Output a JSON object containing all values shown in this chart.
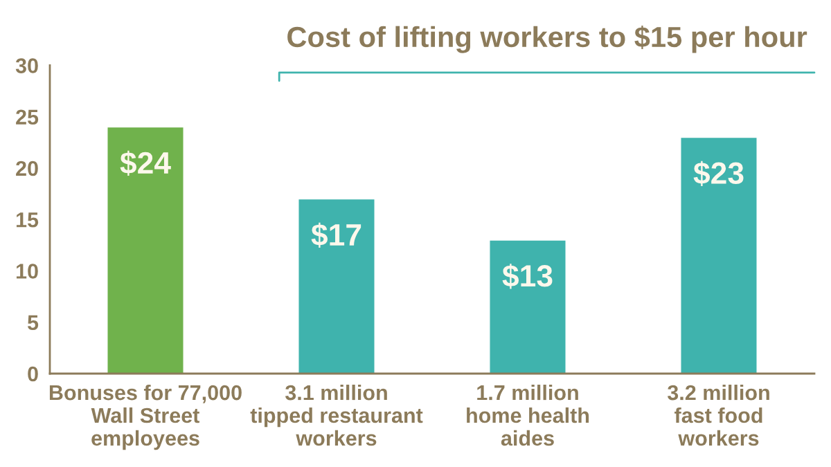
{
  "chart_data": {
    "type": "bar",
    "categories": [
      "Bonuses for 77,000\nWall Street\nemployees",
      "3.1 million\ntipped restaurant\nworkers",
      "1.7 million\nhome health\naides",
      "3.2 million\nfast food\nworkers"
    ],
    "values": [
      24,
      17,
      13,
      23
    ],
    "value_labels": [
      "$24",
      "$17",
      "$13",
      "$23"
    ],
    "colors": [
      "#70b24c",
      "#3fb3ad",
      "#3fb3ad",
      "#3fb3ad"
    ],
    "ylim": [
      0,
      30
    ],
    "yticks": [
      0,
      5,
      10,
      15,
      20,
      25,
      30
    ],
    "annotations": [
      "Cost of lifting workers to $15 per hour"
    ],
    "grid": false,
    "legend": false
  }
}
